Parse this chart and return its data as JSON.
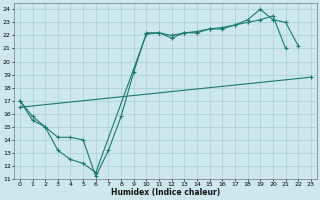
{
  "xlabel": "Humidex (Indice chaleur)",
  "background_color": "#cce8ec",
  "grid_color": "#aacdd4",
  "line_color": "#1a7a6e",
  "xlim": [
    -0.5,
    23.5
  ],
  "ylim": [
    11,
    24.5
  ],
  "xticks": [
    0,
    1,
    2,
    3,
    4,
    5,
    6,
    7,
    8,
    9,
    10,
    11,
    12,
    13,
    14,
    15,
    16,
    17,
    18,
    19,
    20,
    21,
    22,
    23
  ],
  "yticks": [
    11,
    12,
    13,
    14,
    15,
    16,
    17,
    18,
    19,
    20,
    21,
    22,
    23,
    24
  ],
  "line1_x": [
    0,
    1,
    2,
    3,
    4,
    5,
    6,
    7,
    8,
    9,
    10,
    11,
    12,
    13,
    14,
    15,
    16,
    17,
    18,
    19,
    20,
    21
  ],
  "line1_y": [
    17.0,
    15.5,
    15.0,
    14.2,
    14.2,
    14.0,
    11.2,
    13.2,
    15.8,
    19.2,
    22.2,
    22.2,
    21.8,
    22.2,
    22.3,
    22.5,
    22.5,
    22.8,
    23.0,
    23.2,
    23.5,
    21.0
  ],
  "line2_x": [
    0,
    1,
    2,
    3,
    4,
    5,
    6,
    10,
    11,
    12,
    13,
    14,
    15,
    16,
    17,
    18,
    19,
    20,
    21,
    22
  ],
  "line2_y": [
    17.0,
    15.8,
    15.0,
    13.2,
    12.5,
    12.2,
    11.5,
    22.1,
    22.2,
    22.0,
    22.2,
    22.2,
    22.5,
    22.6,
    22.8,
    23.2,
    24.0,
    23.2,
    23.0,
    21.2
  ],
  "line3_x": [
    0,
    23
  ],
  "line3_y": [
    16.5,
    18.8
  ]
}
